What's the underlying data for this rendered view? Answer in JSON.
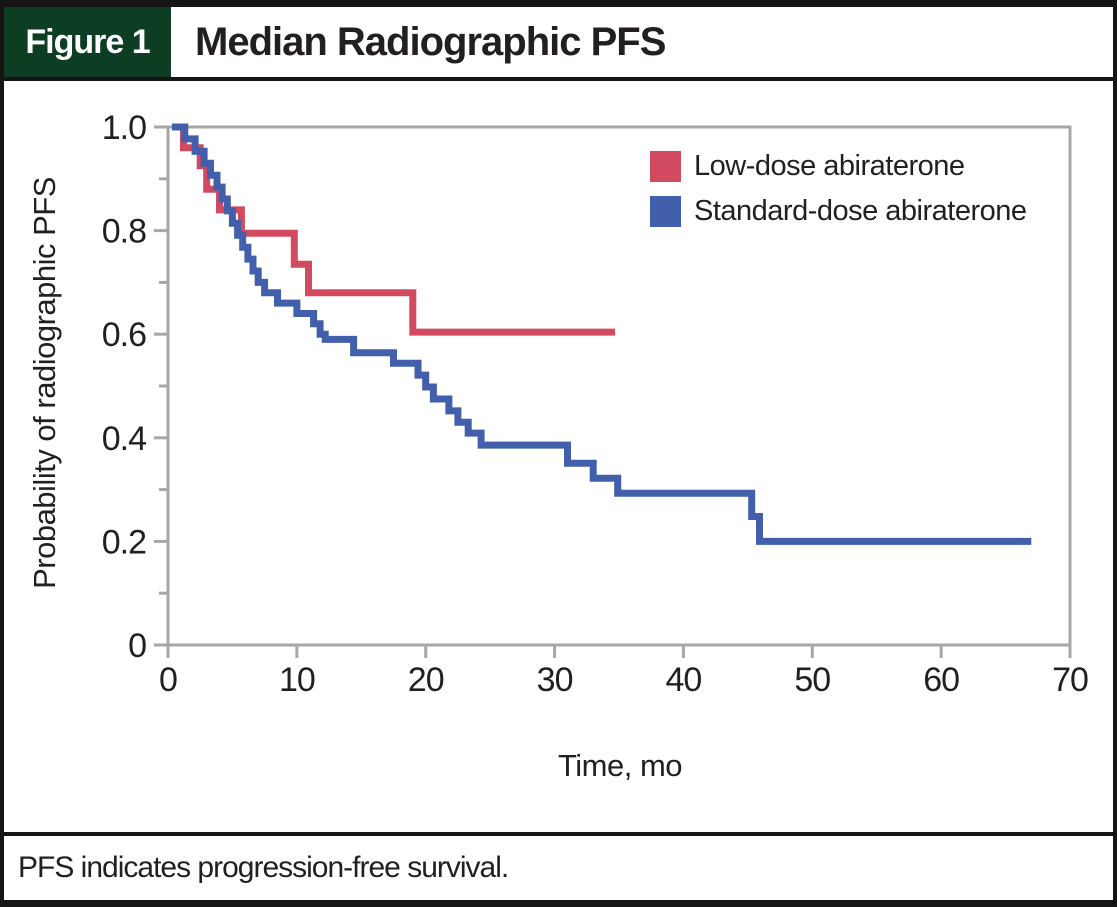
{
  "header": {
    "tag": "Figure 1",
    "title": "Median Radiographic PFS"
  },
  "footer": {
    "note": "PFS indicates progression-free survival."
  },
  "colors": {
    "header_green": "#0d3d23",
    "frame_black": "#151515",
    "axis_gray": "#a7a7a7",
    "text_black": "#231f20",
    "low_dose_red": "#d14a5f",
    "standard_dose_blue": "#415fab"
  },
  "chart_data": {
    "type": "line",
    "subtype": "kaplan-meier-step",
    "title": "Median Radiographic PFS",
    "xlabel": "Time, mo",
    "ylabel": "Probability of radiographic PFS",
    "xlim": [
      0,
      70
    ],
    "ylim": [
      0,
      1.0
    ],
    "grid": false,
    "frame": true,
    "legend_position": "top-right",
    "x_ticks": [
      {
        "label": "0",
        "value": 0
      },
      {
        "label": "10",
        "value": 10
      },
      {
        "label": "20",
        "value": 20
      },
      {
        "label": "30",
        "value": 30
      },
      {
        "label": "40",
        "value": 40
      },
      {
        "label": "50",
        "value": 50
      },
      {
        "label": "60",
        "value": 60
      },
      {
        "label": "70",
        "value": 70
      }
    ],
    "y_ticks": [
      {
        "label": "1.0",
        "value": 1.0
      },
      {
        "label": "0.8",
        "value": 0.8
      },
      {
        "label": "0.6",
        "value": 0.6
      },
      {
        "label": "0.4",
        "value": 0.4
      },
      {
        "label": "0.2",
        "value": 0.2
      },
      {
        "label": "0",
        "value": 0
      }
    ],
    "y_minor_ticks": [
      0.1,
      0.3,
      0.5,
      0.7,
      0.9
    ],
    "series": [
      {
        "name": "Low-dose abiraterone",
        "color": "#d14a5f",
        "start_time": 0.7,
        "start_prob": 1.0,
        "steps": [
          [
            1.2,
            0.96
          ],
          [
            2.5,
            0.925
          ],
          [
            3.0,
            0.88
          ],
          [
            4.0,
            0.84
          ],
          [
            5.7,
            0.795
          ],
          [
            9.8,
            0.735
          ],
          [
            10.9,
            0.68
          ],
          [
            19.0,
            0.604
          ]
        ],
        "end_time": 34.7
      },
      {
        "name": "Standard-dose abiraterone",
        "color": "#415fab",
        "start_time": 0.3,
        "start_prob": 1.0,
        "steps": [
          [
            1.3,
            0.977
          ],
          [
            2.1,
            0.953
          ],
          [
            2.8,
            0.93
          ],
          [
            3.3,
            0.907
          ],
          [
            3.8,
            0.884
          ],
          [
            4.2,
            0.861
          ],
          [
            4.6,
            0.838
          ],
          [
            5.0,
            0.814
          ],
          [
            5.4,
            0.791
          ],
          [
            5.8,
            0.768
          ],
          [
            6.2,
            0.745
          ],
          [
            6.6,
            0.722
          ],
          [
            7.0,
            0.7
          ],
          [
            7.5,
            0.68
          ],
          [
            8.5,
            0.66
          ],
          [
            10.0,
            0.64
          ],
          [
            11.3,
            0.62
          ],
          [
            11.8,
            0.6
          ],
          [
            12.2,
            0.59
          ],
          [
            14.4,
            0.564
          ],
          [
            17.5,
            0.544
          ],
          [
            19.4,
            0.521
          ],
          [
            20.0,
            0.498
          ],
          [
            20.6,
            0.475
          ],
          [
            21.8,
            0.452
          ],
          [
            22.5,
            0.43
          ],
          [
            23.3,
            0.409
          ],
          [
            24.3,
            0.386
          ],
          [
            31.0,
            0.351
          ],
          [
            33.0,
            0.322
          ],
          [
            34.9,
            0.293
          ],
          [
            45.3,
            0.248
          ],
          [
            45.9,
            0.2
          ]
        ],
        "end_time": 67.0
      }
    ]
  }
}
